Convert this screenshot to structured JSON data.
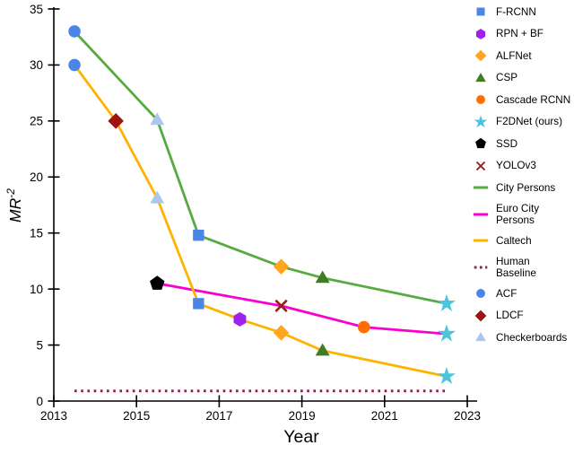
{
  "chart_data": {
    "type": "line",
    "title": "",
    "xlabel": "Year",
    "ylabel": "MR⁻²",
    "ylabel_base": "MR",
    "ylabel_sup": "-2",
    "xlim": [
      2013,
      2023
    ],
    "ylim": [
      0,
      35
    ],
    "xticks": [
      2013,
      2015,
      2017,
      2019,
      2021,
      2023
    ],
    "yticks": [
      0,
      5,
      10,
      15,
      20,
      25,
      30,
      35
    ],
    "grid": false,
    "legend_position": "right",
    "series": [
      {
        "name": "City Persons",
        "color": "#56ab40",
        "points": [
          {
            "x": 2013.5,
            "y": 33.0,
            "method": "ACF",
            "marker": "circle",
            "marker_color": "#4a86e8"
          },
          {
            "x": 2015.5,
            "y": 25.1,
            "method": "Checkerboards",
            "marker": "triangle",
            "marker_color": "#a9c9ea"
          },
          {
            "x": 2016.5,
            "y": 14.8,
            "method": "F-RCNN",
            "marker": "square",
            "marker_color": "#4a86e8"
          },
          {
            "x": 2018.5,
            "y": 12.0,
            "method": "ALFNet",
            "marker": "diamond",
            "marker_color": "#ffa51f"
          },
          {
            "x": 2019.5,
            "y": 11.0,
            "method": "CSP",
            "marker": "triangle",
            "marker_color": "#3e7d23"
          },
          {
            "x": 2022.5,
            "y": 8.7,
            "method": "F2DNet (ours)",
            "marker": "star",
            "marker_color": "#4cc4d9"
          }
        ]
      },
      {
        "name": "Euro City Persons",
        "color": "#f900cd",
        "points": [
          {
            "x": 2015.5,
            "y": 10.5,
            "method": "SSD",
            "marker": "pentagon",
            "marker_color": "#000000"
          },
          {
            "x": 2018.5,
            "y": 8.5,
            "method": "YOLOv3",
            "marker": "x",
            "marker_color": "#952015"
          },
          {
            "x": 2020.5,
            "y": 6.6,
            "method": "Cascade RCNN",
            "marker": "circle",
            "marker_color": "#ff6d01"
          },
          {
            "x": 2022.5,
            "y": 6.0,
            "method": "F2DNet (ours)",
            "marker": "star",
            "marker_color": "#4cc4d9"
          }
        ]
      },
      {
        "name": "Caltech",
        "color": "#ffb301",
        "points": [
          {
            "x": 2013.5,
            "y": 30.0,
            "method": "ACF",
            "marker": "circle",
            "marker_color": "#4a86e8"
          },
          {
            "x": 2014.5,
            "y": 25.0,
            "method": "LDCF",
            "marker": "diamond",
            "marker_color": "#a11313"
          },
          {
            "x": 2015.5,
            "y": 18.1,
            "method": "Checkerboards",
            "marker": "triangle",
            "marker_color": "#a9c9ea"
          },
          {
            "x": 2016.5,
            "y": 8.7,
            "method": "F-RCNN",
            "marker": "square",
            "marker_color": "#4a86e8"
          },
          {
            "x": 2017.5,
            "y": 7.3,
            "method": "RPN + BF",
            "marker": "hexagon",
            "marker_color": "#a020f0"
          },
          {
            "x": 2018.5,
            "y": 6.1,
            "method": "ALFNet",
            "marker": "diamond",
            "marker_color": "#ffa51f"
          },
          {
            "x": 2019.5,
            "y": 4.5,
            "method": "CSP",
            "marker": "triangle",
            "marker_color": "#3e7d23"
          },
          {
            "x": 2022.5,
            "y": 2.2,
            "method": "F2DNet (ours)",
            "marker": "star",
            "marker_color": "#4cc4d9"
          }
        ]
      }
    ],
    "baseline": {
      "name": "Human Baseline",
      "value": 0.9,
      "x_start": 2013.5,
      "x_end": 2022.5,
      "color": "#8c1f56",
      "style": "dotted"
    },
    "legend": [
      {
        "lines": [
          "F-RCNN"
        ],
        "marker": "square",
        "color": "#4a86e8"
      },
      {
        "lines": [
          "RPN + BF"
        ],
        "marker": "hexagon",
        "color": "#a020f0"
      },
      {
        "lines": [
          "ALFNet"
        ],
        "marker": "diamond",
        "color": "#ffa51f"
      },
      {
        "lines": [
          "CSP"
        ],
        "marker": "triangle",
        "color": "#3e7d23"
      },
      {
        "lines": [
          "Cascade RCNN"
        ],
        "marker": "circle",
        "color": "#ff6d01"
      },
      {
        "lines": [
          "F2DNet (ours)"
        ],
        "marker": "star",
        "color": "#4cc4d9"
      },
      {
        "lines": [
          "SSD"
        ],
        "marker": "pentagon",
        "color": "#000000"
      },
      {
        "lines": [
          "YOLOv3"
        ],
        "marker": "x",
        "color": "#952015"
      },
      {
        "lines": [
          "City Persons"
        ],
        "marker": "line",
        "color": "#56ab40"
      },
      {
        "lines": [
          "Euro City",
          "Persons"
        ],
        "marker": "line",
        "color": "#f900cd"
      },
      {
        "lines": [
          "Caltech"
        ],
        "marker": "line",
        "color": "#ffb301"
      },
      {
        "lines": [
          "Human",
          "Baseline"
        ],
        "marker": "dotted-line",
        "color": "#8c1f56"
      },
      {
        "lines": [
          "ACF"
        ],
        "marker": "circle",
        "color": "#4a86e8"
      },
      {
        "lines": [
          "LDCF"
        ],
        "marker": "diamond",
        "color": "#a11313"
      },
      {
        "lines": [
          "Checkerboards"
        ],
        "marker": "triangle",
        "color": "#a9c9ea"
      }
    ]
  }
}
